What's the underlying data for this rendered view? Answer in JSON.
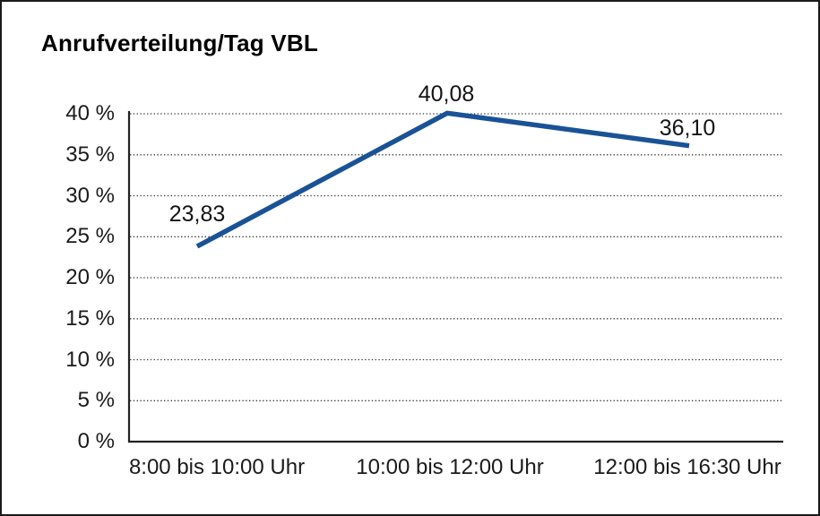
{
  "title": "Anrufverteilung/Tag VBL",
  "chart_data": {
    "type": "line",
    "title": "Anrufverteilung/Tag VBL",
    "categories": [
      "8:00 bis 10:00 Uhr",
      "10:00 bis 12:00 Uhr",
      "12:00 bis 16:30 Uhr"
    ],
    "values": [
      23.83,
      40.08,
      36.1
    ],
    "value_labels": [
      "23,83",
      "40,08",
      "36,10"
    ],
    "series_name": "Anrufverteilung",
    "xlabel": "",
    "ylabel": "",
    "ylim": [
      0,
      40
    ],
    "ytick_step": 5,
    "ytick_labels": [
      "0 %",
      "5 %",
      "10 %",
      "15 %",
      "20 %",
      "25 %",
      "30 %",
      "35 %",
      "40 %"
    ],
    "grid": "horizontal-dotted",
    "legend_position": "none",
    "line_color": "#1a5296",
    "line_width": 5.5
  }
}
